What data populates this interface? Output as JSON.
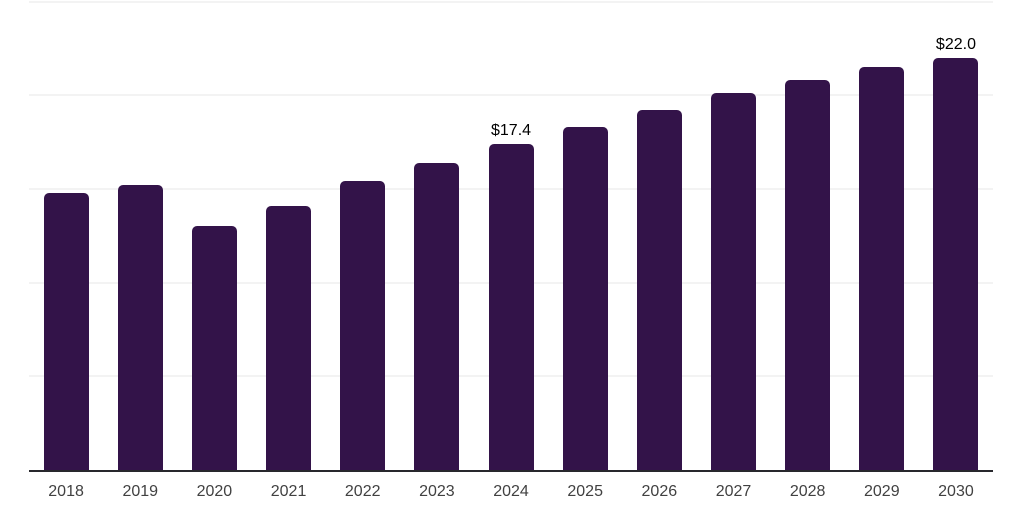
{
  "chart_data": {
    "type": "bar",
    "title": "",
    "xlabel": "",
    "ylabel": "",
    "categories": [
      "2018",
      "2019",
      "2020",
      "2021",
      "2022",
      "2023",
      "2024",
      "2025",
      "2026",
      "2027",
      "2028",
      "2029",
      "2030"
    ],
    "values": [
      14.8,
      15.2,
      13.0,
      14.1,
      15.4,
      16.4,
      17.4,
      18.3,
      19.2,
      20.1,
      20.8,
      21.5,
      22.0
    ],
    "value_labels": [
      "",
      "",
      "",
      "",
      "",
      "",
      "$17.4",
      "",
      "",
      "",
      "",
      "",
      "$22.0"
    ],
    "ylim": [
      0,
      25
    ],
    "gridline_values": [
      5,
      10,
      15,
      20,
      25
    ],
    "grid": "horizontal",
    "legend": "none",
    "y_axis_tick_labels_visible": false
  },
  "colors": {
    "bar": "#331349",
    "axis_line": "#28282d",
    "tick_label": "#414141",
    "data_label": "#000000",
    "gridline": "#f3f3f3",
    "background": "#ffffff"
  }
}
